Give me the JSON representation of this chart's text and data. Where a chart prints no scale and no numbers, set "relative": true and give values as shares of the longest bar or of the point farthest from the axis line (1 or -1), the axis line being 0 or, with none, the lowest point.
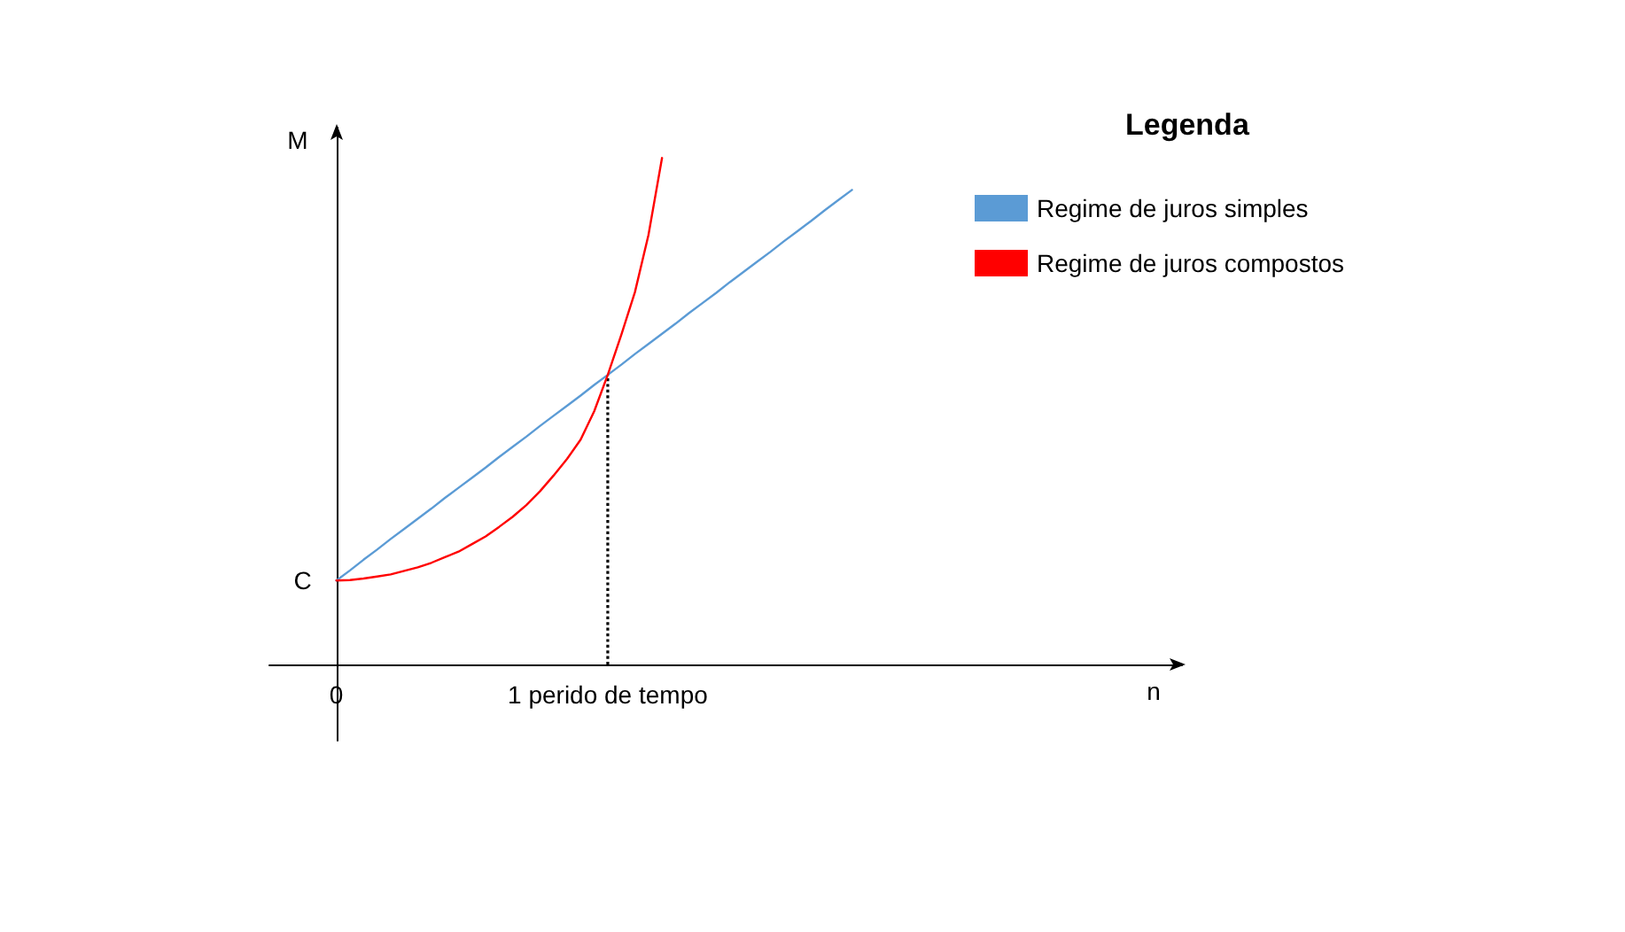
{
  "chart_data": {
    "type": "line",
    "relative": true,
    "ylabel": "M",
    "legend_title": "Legenda",
    "legend": "top right",
    "marker": "none",
    "categories": [
      "0",
      null,
      null,
      null,
      null,
      null,
      null,
      null,
      null,
      null,
      null,
      null,
      null,
      null,
      null,
      null,
      null,
      null,
      null,
      null,
      "1 perido de tempo",
      null,
      null,
      null,
      null,
      null,
      null,
      null,
      null,
      null,
      null,
      null,
      null,
      null,
      null,
      null,
      null,
      null,
      null
    ],
    "annotations": [
      {
        "text": "C",
        "x": "0",
        "y": 0.166
      },
      "n"
    ],
    "ref_lines": [
      {
        "axis": "x",
        "value": "1 perido de tempo",
        "color": "#000000",
        "line_style": "dotted"
      }
    ],
    "series": [
      {
        "name": "Regime de juros simples",
        "color": "#5b9bd5",
        "values": [
          0.166,
          0.186,
          0.207,
          0.227,
          0.248,
          0.268,
          0.288,
          0.308,
          0.329,
          0.349,
          0.369,
          0.389,
          0.41,
          0.43,
          0.45,
          0.471,
          0.491,
          0.511,
          0.531,
          0.552,
          0.572,
          0.592,
          0.613,
          0.633,
          0.653,
          0.673,
          0.694,
          0.714,
          0.734,
          0.755,
          0.775,
          0.795,
          0.815,
          0.836,
          0.856,
          0.876,
          0.897,
          0.917,
          0.937
        ]
      },
      {
        "name": "Regime de juros compostos",
        "color": "#ff0000",
        "values": [
          0.166,
          0.167,
          0.17,
          0.174,
          0.178,
          0.185,
          0.192,
          0.201,
          0.212,
          0.223,
          0.238,
          0.253,
          0.272,
          0.292,
          0.315,
          0.342,
          0.373,
          0.406,
          0.444,
          0.5,
          0.572,
          0.651,
          0.735,
          0.848,
          1,
          null,
          null,
          null,
          null,
          null,
          null,
          null,
          null,
          null,
          null,
          null,
          null,
          null,
          null
        ]
      }
    ]
  }
}
